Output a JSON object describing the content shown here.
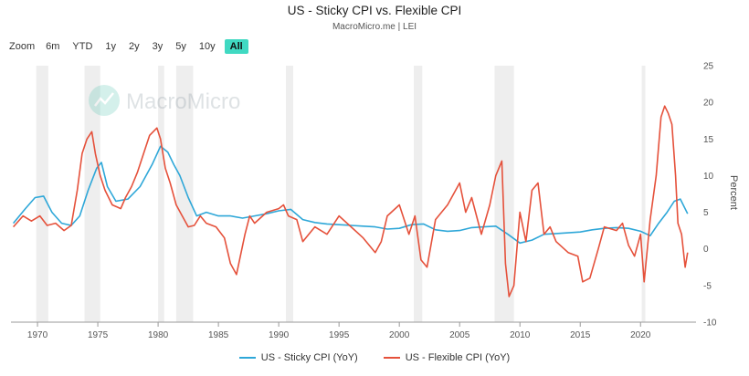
{
  "title": "US - Sticky CPI vs. Flexible CPI",
  "subtitle": "MacroMicro.me | LEI",
  "zoom": {
    "label": "Zoom",
    "options": [
      "6m",
      "YTD",
      "1y",
      "2y",
      "3y",
      "5y",
      "10y",
      "All"
    ],
    "selected": "All"
  },
  "watermark": "MacroMicro",
  "colors": {
    "sticky": "#2ea7d8",
    "flexible": "#e5513b",
    "recession": "#eeeeee",
    "accent": "#40d9c2"
  },
  "chart_data": {
    "type": "line",
    "title": "US - Sticky CPI vs. Flexible CPI",
    "xlabel": "",
    "ylabel": "Percent",
    "xlim": [
      1967.8,
      2024.6
    ],
    "ylim": [
      -10,
      25
    ],
    "x_ticks": [
      1970,
      1975,
      1980,
      1985,
      1990,
      1995,
      2000,
      2005,
      2010,
      2015,
      2020
    ],
    "y_ticks": [
      -10,
      -5,
      0,
      5,
      10,
      15,
      20,
      25
    ],
    "y_axis_position": "right",
    "grid": false,
    "legend_position": "bottom-center",
    "recessions": [
      [
        1969.9,
        1970.9
      ],
      [
        1973.9,
        1975.2
      ],
      [
        1980.0,
        1980.5
      ],
      [
        1981.5,
        1982.9
      ],
      [
        1990.6,
        1991.2
      ],
      [
        2001.2,
        2001.9
      ],
      [
        2007.9,
        2009.5
      ],
      [
        2020.1,
        2020.4
      ]
    ],
    "series": [
      {
        "name": "US - Sticky CPI (YoY)",
        "x": [
          1968.0,
          1969.0,
          1969.8,
          1970.5,
          1971.2,
          1972.0,
          1972.8,
          1973.5,
          1974.2,
          1974.9,
          1975.3,
          1975.8,
          1976.5,
          1977.5,
          1978.5,
          1979.5,
          1980.2,
          1980.8,
          1981.3,
          1981.8,
          1982.5,
          1983.2,
          1984.0,
          1985.0,
          1986.0,
          1987.0,
          1988.0,
          1989.0,
          1990.0,
          1991.0,
          1992.0,
          1993.0,
          1994.0,
          1995.0,
          1996.0,
          1997.0,
          1998.0,
          1999.0,
          2000.0,
          2001.0,
          2002.0,
          2003.0,
          2004.0,
          2005.0,
          2006.0,
          2007.0,
          2008.0,
          2009.0,
          2010.0,
          2011.0,
          2012.0,
          2013.0,
          2014.0,
          2015.0,
          2016.0,
          2017.0,
          2018.0,
          2019.0,
          2020.0,
          2020.8,
          2021.5,
          2022.2,
          2022.8,
          2023.3,
          2023.9
        ],
        "values": [
          3.5,
          5.5,
          7.0,
          7.2,
          5.0,
          3.5,
          3.2,
          4.5,
          8.0,
          11.0,
          11.8,
          8.5,
          6.5,
          6.8,
          8.5,
          11.5,
          14.0,
          13.2,
          11.5,
          10.0,
          7.0,
          4.5,
          5.0,
          4.5,
          4.5,
          4.2,
          4.5,
          4.8,
          5.2,
          5.4,
          4.0,
          3.6,
          3.4,
          3.3,
          3.2,
          3.1,
          3.0,
          2.7,
          2.8,
          3.3,
          3.4,
          2.6,
          2.4,
          2.5,
          2.9,
          3.0,
          3.1,
          2.0,
          0.8,
          1.2,
          2.0,
          2.1,
          2.2,
          2.3,
          2.6,
          2.8,
          2.9,
          2.8,
          2.4,
          1.8,
          3.5,
          5.0,
          6.5,
          6.8,
          4.8
        ]
      },
      {
        "name": "US - Flexible CPI (YoY)",
        "x": [
          1968.0,
          1968.8,
          1969.5,
          1970.2,
          1970.8,
          1971.5,
          1972.2,
          1972.8,
          1973.3,
          1973.7,
          1974.1,
          1974.5,
          1974.8,
          1975.2,
          1975.6,
          1976.2,
          1976.9,
          1977.3,
          1977.8,
          1978.3,
          1978.8,
          1979.3,
          1979.9,
          1980.2,
          1980.6,
          1981.0,
          1981.5,
          1982.0,
          1982.5,
          1983.0,
          1983.5,
          1984.0,
          1984.8,
          1985.5,
          1986.0,
          1986.5,
          1987.2,
          1987.6,
          1988.0,
          1989.0,
          1990.0,
          1990.4,
          1990.8,
          1991.5,
          1992.0,
          1993.0,
          1994.0,
          1995.0,
          1996.0,
          1997.0,
          1998.0,
          1998.5,
          1999.0,
          2000.0,
          2000.8,
          2001.3,
          2001.8,
          2002.3,
          2003.0,
          2004.0,
          2005.0,
          2005.5,
          2006.0,
          2006.8,
          2007.5,
          2008.0,
          2008.5,
          2008.8,
          2009.1,
          2009.5,
          2010.0,
          2010.5,
          2011.0,
          2011.5,
          2012.0,
          2012.5,
          2013.0,
          2014.0,
          2014.8,
          2015.2,
          2015.8,
          2016.5,
          2017.0,
          2018.0,
          2018.5,
          2019.0,
          2019.5,
          2020.0,
          2020.3,
          2020.8,
          2021.3,
          2021.7,
          2022.0,
          2022.3,
          2022.6,
          2022.9,
          2023.1,
          2023.4,
          2023.7,
          2023.9
        ],
        "values": [
          3.0,
          4.5,
          3.8,
          4.5,
          3.2,
          3.5,
          2.5,
          3.2,
          8.0,
          13.0,
          15.0,
          16.0,
          13.0,
          10.0,
          8.0,
          6.0,
          5.5,
          7.0,
          8.5,
          10.5,
          13.0,
          15.5,
          16.5,
          15.0,
          11.0,
          9.0,
          6.0,
          4.5,
          3.0,
          3.2,
          4.5,
          3.5,
          3.0,
          1.5,
          -2.0,
          -3.5,
          2.0,
          4.5,
          3.5,
          5.0,
          5.5,
          6.0,
          4.5,
          4.0,
          1.0,
          3.0,
          2.0,
          4.5,
          3.0,
          1.5,
          -0.5,
          1.0,
          4.5,
          6.0,
          2.0,
          4.5,
          -1.5,
          -2.5,
          4.0,
          6.0,
          9.0,
          5.0,
          7.0,
          2.0,
          6.0,
          10.0,
          12.0,
          -2.0,
          -6.5,
          -5.0,
          5.0,
          1.0,
          8.0,
          9.0,
          2.0,
          3.0,
          1.0,
          -0.5,
          -1.0,
          -4.5,
          -4.0,
          0.0,
          3.0,
          2.5,
          3.5,
          0.5,
          -1.0,
          2.0,
          -4.5,
          4.0,
          10.0,
          18.0,
          19.5,
          18.5,
          17.0,
          10.0,
          3.5,
          2.0,
          -2.5,
          -0.5
        ]
      }
    ]
  }
}
